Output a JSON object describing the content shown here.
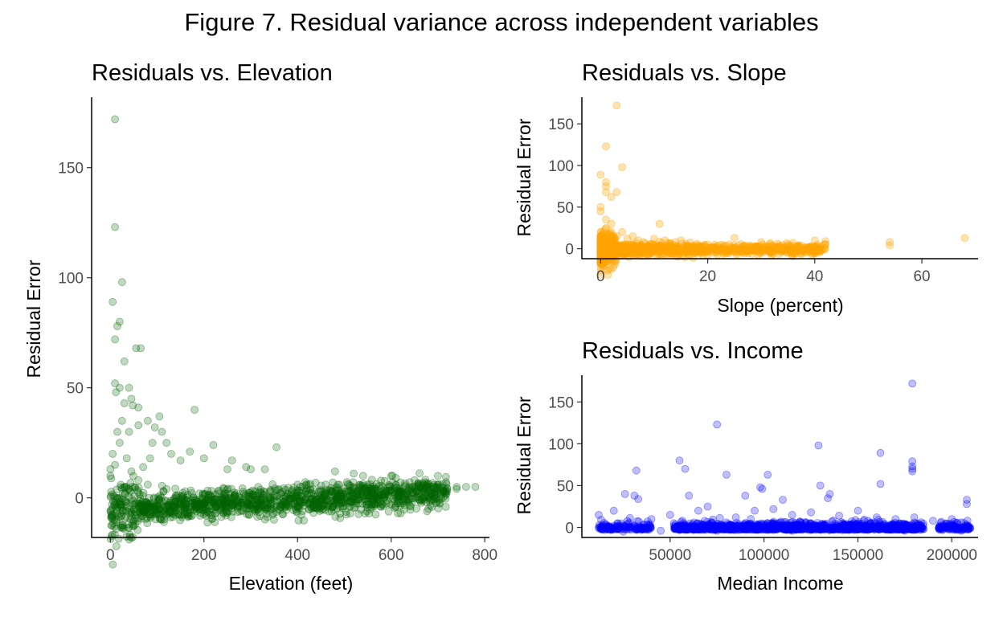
{
  "figure_title": "Figure 7. Residual variance across independent variables",
  "chart_data": [
    {
      "type": "scatter",
      "title": "Residuals vs. Elevation",
      "xlabel": "Elevation (feet)",
      "ylabel": "Residual Error",
      "xlim": [
        -40,
        810
      ],
      "ylim": [
        -18,
        182
      ],
      "xticks": [
        0,
        200,
        400,
        600,
        800
      ],
      "yticks": [
        0,
        50,
        100,
        150
      ],
      "grid": false,
      "legend": "none",
      "color": "#006400",
      "opacity": 0.25,
      "n_points_approx": 3000,
      "points": [
        [
          10,
          172
        ],
        [
          10,
          123
        ],
        [
          25,
          98
        ],
        [
          20,
          80
        ],
        [
          15,
          78
        ],
        [
          5,
          89
        ],
        [
          10,
          72
        ],
        [
          55,
          68
        ],
        [
          65,
          68
        ],
        [
          30,
          62
        ],
        [
          10,
          52
        ],
        [
          20,
          50
        ],
        [
          12,
          48
        ],
        [
          40,
          50
        ],
        [
          45,
          45
        ],
        [
          30,
          43
        ],
        [
          48,
          42
        ],
        [
          60,
          41
        ],
        [
          180,
          40
        ],
        [
          80,
          35
        ],
        [
          105,
          37
        ],
        [
          95,
          32
        ],
        [
          60,
          33
        ],
        [
          40,
          30
        ],
        [
          110,
          30
        ],
        [
          120,
          25
        ],
        [
          220,
          24
        ],
        [
          355,
          23
        ],
        [
          90,
          25
        ],
        [
          130,
          20
        ],
        [
          170,
          21
        ],
        [
          200,
          18
        ],
        [
          150,
          17
        ],
        [
          260,
          17
        ],
        [
          290,
          14
        ],
        [
          300,
          13
        ],
        [
          330,
          13
        ],
        [
          250,
          13
        ],
        [
          480,
          12
        ],
        [
          520,
          11
        ],
        [
          540,
          10
        ],
        [
          600,
          10
        ],
        [
          700,
          10
        ],
        [
          650,
          8
        ],
        [
          620,
          7
        ],
        [
          780,
          5
        ],
        [
          760,
          5
        ],
        [
          740,
          4
        ],
        [
          720,
          4
        ],
        [
          690,
          5
        ],
        [
          670,
          5
        ],
        [
          640,
          5
        ],
        [
          590,
          3
        ],
        [
          560,
          4
        ],
        [
          500,
          3
        ],
        [
          450,
          3
        ],
        [
          400,
          6
        ],
        [
          420,
          4
        ],
        [
          380,
          2
        ],
        [
          350,
          1
        ],
        [
          300,
          0
        ],
        [
          250,
          -1
        ],
        [
          200,
          -2
        ],
        [
          150,
          -3
        ],
        [
          100,
          -4
        ],
        [
          50,
          -5
        ],
        [
          0,
          -6
        ],
        [
          5,
          -8
        ],
        [
          20,
          -7
        ],
        [
          10,
          -2
        ],
        [
          30,
          5
        ],
        [
          60,
          8
        ],
        [
          80,
          6
        ],
        [
          120,
          4
        ],
        [
          160,
          3
        ],
        [
          190,
          2
        ],
        [
          230,
          3
        ],
        [
          270,
          2
        ],
        [
          310,
          3
        ],
        [
          360,
          4
        ],
        [
          410,
          5
        ],
        [
          460,
          6
        ],
        [
          510,
          6
        ],
        [
          550,
          6
        ],
        [
          610,
          6
        ],
        [
          660,
          6
        ],
        [
          700,
          6
        ],
        [
          740,
          5
        ],
        [
          0,
          10
        ],
        [
          5,
          20
        ],
        [
          10,
          15
        ],
        [
          15,
          30
        ],
        [
          20,
          25
        ],
        [
          25,
          35
        ],
        [
          35,
          18
        ],
        [
          45,
          12
        ],
        [
          70,
          14
        ],
        [
          85,
          18
        ]
      ]
    },
    {
      "type": "scatter",
      "title": "Residuals vs. Slope",
      "xlabel": "Slope (percent)",
      "ylabel": "Residual Error",
      "xlim": [
        -3.5,
        70.5
      ],
      "ylim": [
        -12,
        182
      ],
      "xticks": [
        0,
        20,
        40,
        60
      ],
      "yticks": [
        0,
        50,
        100,
        150
      ],
      "grid": false,
      "legend": "none",
      "color": "#FFA500",
      "opacity": 0.3,
      "n_points_approx": 3000,
      "points": [
        [
          3,
          172
        ],
        [
          1,
          123
        ],
        [
          4,
          98
        ],
        [
          0,
          89
        ],
        [
          1,
          80
        ],
        [
          1,
          75
        ],
        [
          3,
          68
        ],
        [
          1,
          68
        ],
        [
          2,
          62
        ],
        [
          0,
          50
        ],
        [
          0,
          45
        ],
        [
          1,
          35
        ],
        [
          2,
          30
        ],
        [
          1,
          25
        ],
        [
          0,
          20
        ],
        [
          2,
          18
        ],
        [
          3,
          15
        ],
        [
          5,
          12
        ],
        [
          4,
          20
        ],
        [
          6,
          15
        ],
        [
          7,
          10
        ],
        [
          8,
          8
        ],
        [
          11,
          30
        ],
        [
          10,
          12
        ],
        [
          12,
          10
        ],
        [
          14,
          8
        ],
        [
          15,
          10
        ],
        [
          16,
          6
        ],
        [
          18,
          6
        ],
        [
          20,
          5
        ],
        [
          22,
          4
        ],
        [
          24,
          5
        ],
        [
          25,
          13
        ],
        [
          27,
          4
        ],
        [
          29,
          3
        ],
        [
          30,
          8
        ],
        [
          32,
          3
        ],
        [
          35,
          5
        ],
        [
          37,
          4
        ],
        [
          40,
          10
        ],
        [
          42,
          9
        ],
        [
          42,
          5
        ],
        [
          54,
          8
        ],
        [
          54,
          4
        ],
        [
          68,
          13
        ],
        [
          0,
          -5
        ],
        [
          2,
          -8
        ],
        [
          5,
          -5
        ],
        [
          10,
          -3
        ],
        [
          15,
          -2
        ],
        [
          20,
          0
        ],
        [
          25,
          -1
        ],
        [
          1,
          0
        ],
        [
          3,
          2
        ],
        [
          6,
          1
        ],
        [
          9,
          0
        ],
        [
          12,
          2
        ],
        [
          17,
          1
        ],
        [
          21,
          1
        ],
        [
          28,
          2
        ],
        [
          34,
          1
        ],
        [
          39,
          2
        ],
        [
          0,
          5
        ],
        [
          1,
          10
        ],
        [
          2,
          5
        ],
        [
          4,
          3
        ],
        [
          6,
          5
        ],
        [
          8,
          2
        ],
        [
          13,
          3
        ],
        [
          19,
          2
        ],
        [
          23,
          2
        ],
        [
          33,
          2
        ],
        [
          36,
          3
        ]
      ]
    },
    {
      "type": "scatter",
      "title": "Residuals vs. Income",
      "xlabel": "Median Income",
      "ylabel": "Residual Error",
      "xlim": [
        3000,
        214000
      ],
      "ylim": [
        -12,
        182
      ],
      "xticks": [
        50000,
        100000,
        150000,
        200000
      ],
      "yticks": [
        0,
        50,
        100,
        150
      ],
      "grid": false,
      "legend": "none",
      "color": "#0000FF",
      "opacity": 0.25,
      "n_points_approx": 3000,
      "points": [
        [
          179000,
          172
        ],
        [
          75000,
          123
        ],
        [
          129000,
          98
        ],
        [
          162000,
          89
        ],
        [
          179000,
          79
        ],
        [
          55000,
          80
        ],
        [
          179000,
          73
        ],
        [
          179000,
          70
        ],
        [
          179000,
          67
        ],
        [
          58000,
          70
        ],
        [
          102000,
          63
        ],
        [
          32000,
          68
        ],
        [
          80000,
          63
        ],
        [
          98000,
          48
        ],
        [
          99000,
          46
        ],
        [
          162000,
          52
        ],
        [
          130000,
          50
        ],
        [
          135000,
          40
        ],
        [
          134000,
          35
        ],
        [
          90000,
          38
        ],
        [
          60000,
          38
        ],
        [
          26000,
          40
        ],
        [
          31000,
          38
        ],
        [
          33000,
          34
        ],
        [
          110000,
          33
        ],
        [
          208000,
          33
        ],
        [
          208000,
          28
        ],
        [
          70000,
          25
        ],
        [
          12000,
          15
        ],
        [
          20000,
          20
        ],
        [
          40000,
          10
        ],
        [
          50000,
          15
        ],
        [
          65000,
          20
        ],
        [
          85000,
          12
        ],
        [
          95000,
          20
        ],
        [
          105000,
          22
        ],
        [
          115000,
          15
        ],
        [
          125000,
          18
        ],
        [
          140000,
          14
        ],
        [
          150000,
          20
        ],
        [
          160000,
          12
        ],
        [
          170000,
          10
        ],
        [
          180000,
          12
        ],
        [
          190000,
          8
        ],
        [
          200000,
          10
        ],
        [
          205000,
          6
        ],
        [
          12000,
          0
        ],
        [
          18000,
          -3
        ],
        [
          25000,
          -5
        ],
        [
          35000,
          -2
        ],
        [
          45000,
          -4
        ],
        [
          55000,
          -3
        ],
        [
          65000,
          -2
        ],
        [
          75000,
          -4
        ],
        [
          85000,
          -3
        ],
        [
          95000,
          -2
        ],
        [
          105000,
          -3
        ],
        [
          115000,
          -4
        ],
        [
          125000,
          -2
        ],
        [
          135000,
          -3
        ],
        [
          145000,
          -2
        ],
        [
          155000,
          -3
        ],
        [
          165000,
          -2
        ],
        [
          175000,
          -4
        ],
        [
          185000,
          -2
        ],
        [
          195000,
          -3
        ],
        [
          205000,
          -4
        ],
        [
          14000,
          3
        ],
        [
          22000,
          5
        ],
        [
          28000,
          4
        ],
        [
          52000,
          5
        ],
        [
          62000,
          4
        ],
        [
          72000,
          5
        ],
        [
          82000,
          3
        ],
        [
          92000,
          4
        ],
        [
          102000,
          5
        ],
        [
          112000,
          3
        ],
        [
          122000,
          5
        ],
        [
          132000,
          4
        ],
        [
          142000,
          5
        ],
        [
          152000,
          3
        ],
        [
          162000,
          4
        ],
        [
          172000,
          5
        ],
        [
          182000,
          3
        ],
        [
          198000,
          4
        ],
        [
          208000,
          2
        ]
      ]
    }
  ]
}
